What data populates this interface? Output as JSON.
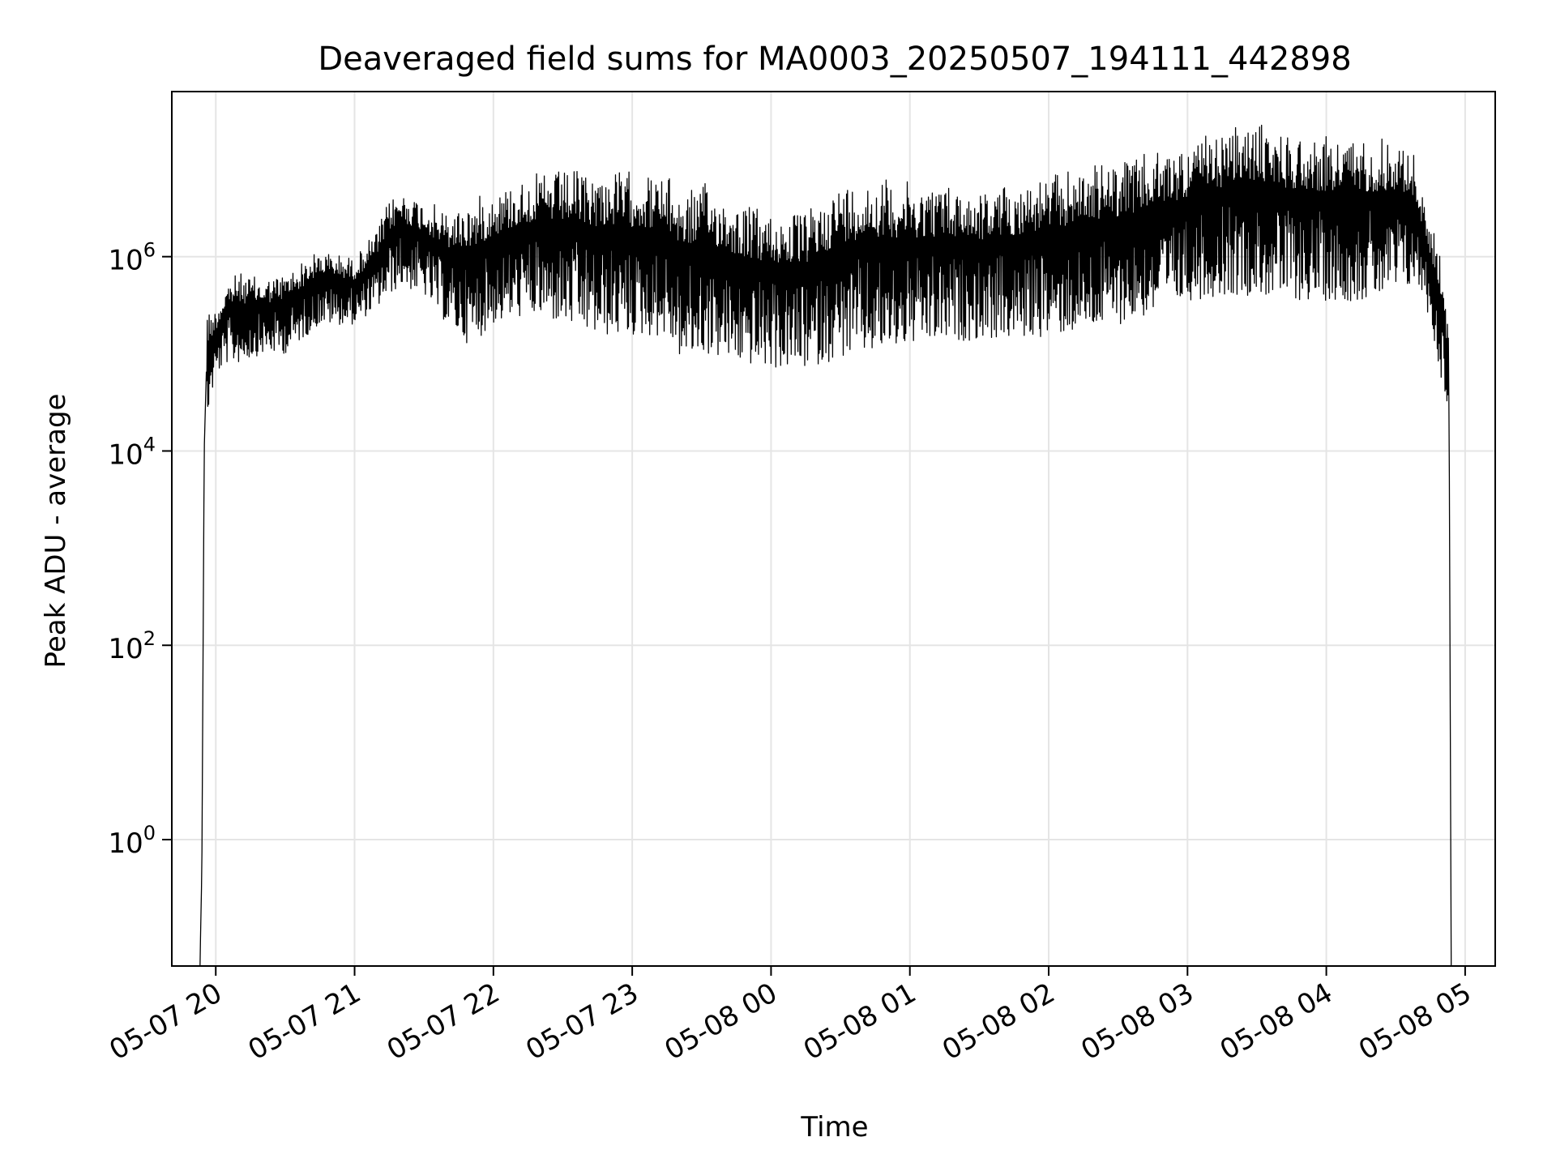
{
  "chart_data": {
    "type": "line",
    "title": "Deaveraged field sums for MA0003_20250507_194111_442898",
    "xlabel": "Time",
    "ylabel": "Peak ADU - average",
    "yscale": "log",
    "grid": true,
    "line_color": "#000000",
    "grid_color": "#e5e5e5",
    "xlim": [
      "2025-05-07 19:41",
      "2025-05-08 05:13"
    ],
    "ylim": [
      0.05,
      50000000
    ],
    "x_ticks": [
      {
        "value": "2025-05-07 20:00",
        "label": "05-07 20"
      },
      {
        "value": "2025-05-07 21:00",
        "label": "05-07 21"
      },
      {
        "value": "2025-05-07 22:00",
        "label": "05-07 22"
      },
      {
        "value": "2025-05-07 23:00",
        "label": "05-07 23"
      },
      {
        "value": "2025-05-08 00:00",
        "label": "05-08 00"
      },
      {
        "value": "2025-05-08 01:00",
        "label": "05-08 01"
      },
      {
        "value": "2025-05-08 02:00",
        "label": "05-08 02"
      },
      {
        "value": "2025-05-08 03:00",
        "label": "05-08 03"
      },
      {
        "value": "2025-05-08 04:00",
        "label": "05-08 04"
      },
      {
        "value": "2025-05-08 05:00",
        "label": "05-08 05"
      }
    ],
    "y_ticks": [
      {
        "value": 1,
        "base": "10",
        "exp": "0"
      },
      {
        "value": 100,
        "base": "10",
        "exp": "2"
      },
      {
        "value": 10000,
        "base": "10",
        "exp": "4"
      },
      {
        "value": 1000000,
        "base": "10",
        "exp": "6"
      }
    ],
    "series": [
      {
        "envelope": {
          "times": [
            "2025-05-07 19:53",
            "2025-05-07 19:54",
            "2025-05-07 19:55",
            "2025-05-07 19:56",
            "2025-05-07 20:00",
            "2025-05-07 20:05",
            "2025-05-07 20:10",
            "2025-05-07 20:20",
            "2025-05-07 20:30",
            "2025-05-07 20:45",
            "2025-05-07 21:00",
            "2025-05-07 21:10",
            "2025-05-07 21:15",
            "2025-05-07 21:20",
            "2025-05-07 21:30",
            "2025-05-07 21:40",
            "2025-05-07 21:50",
            "2025-05-07 22:00",
            "2025-05-07 22:15",
            "2025-05-07 22:30",
            "2025-05-07 22:45",
            "2025-05-07 23:00",
            "2025-05-07 23:15",
            "2025-05-07 23:22",
            "2025-05-07 23:30",
            "2025-05-07 23:45",
            "2025-05-08 00:00",
            "2025-05-08 00:15",
            "2025-05-08 00:30",
            "2025-05-08 00:45",
            "2025-05-08 01:00",
            "2025-05-08 01:15",
            "2025-05-08 01:30",
            "2025-05-08 01:45",
            "2025-05-08 02:00",
            "2025-05-08 02:15",
            "2025-05-08 02:30",
            "2025-05-08 02:45",
            "2025-05-08 03:00",
            "2025-05-08 03:15",
            "2025-05-08 03:30",
            "2025-05-08 03:45",
            "2025-05-08 04:00",
            "2025-05-08 04:15",
            "2025-05-08 04:30",
            "2025-05-08 04:38",
            "2025-05-08 04:42",
            "2025-05-08 04:45",
            "2025-05-08 04:50",
            "2025-05-08 04:53",
            "2025-05-08 04:54"
          ],
          "low": [
            0.03,
            0.5,
            2000,
            20000,
            60000,
            80000,
            80000,
            100000,
            100000,
            200000,
            200000,
            300000,
            400000,
            500000,
            400000,
            200000,
            120000,
            200000,
            250000,
            200000,
            150000,
            150000,
            150000,
            80000,
            100000,
            80000,
            70000,
            70000,
            90000,
            100000,
            120000,
            130000,
            140000,
            140000,
            150000,
            170000,
            200000,
            250000,
            350000,
            400000,
            400000,
            350000,
            350000,
            350000,
            400000,
            500000,
            400000,
            200000,
            50000,
            25000,
            0.03
          ],
          "high": [
            0.03,
            0.5,
            50000,
            300000,
            300000,
            600000,
            700000,
            600000,
            700000,
            1200000,
            1000000,
            2000000,
            4000000,
            5000000,
            4000000,
            3000000,
            4000000,
            5000000,
            7000000,
            8000000,
            8000000,
            8000000,
            7000000,
            5000000,
            6000000,
            4000000,
            3000000,
            3000000,
            6000000,
            7000000,
            6000000,
            6000000,
            5000000,
            6000000,
            7000000,
            9000000,
            10000000,
            12000000,
            15000000,
            20000000,
            25000000,
            20000000,
            18000000,
            18000000,
            18000000,
            12000000,
            4000000,
            2500000,
            1000000,
            160000,
            0.03
          ]
        }
      }
    ]
  }
}
